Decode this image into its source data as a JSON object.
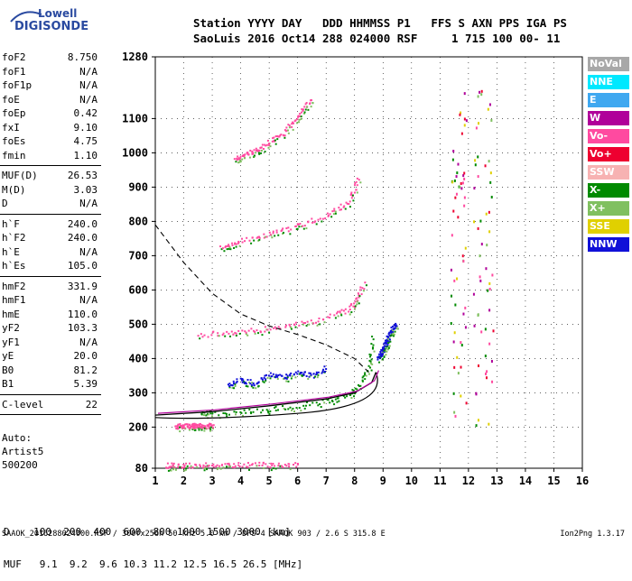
{
  "logo": {
    "line1": "Lowell",
    "line2": "DIGISONDE"
  },
  "header": {
    "line1": "Station YYYY DAY   DDD HHMMSS P1   FFS S AXN PPS IGA PS",
    "line2": "SaoLuis 2016 Oct14 288 024000 RSF     1 715 100 00- 11"
  },
  "parameters": [
    {
      "name": "foF2",
      "value": "8.750"
    },
    {
      "name": "foF1",
      "value": "N/A"
    },
    {
      "name": "foF1p",
      "value": "N/A"
    },
    {
      "name": "foE",
      "value": "N/A"
    },
    {
      "name": "foEp",
      "value": "0.42"
    },
    {
      "name": "fxI",
      "value": "9.10"
    },
    {
      "name": "foEs",
      "value": "4.75"
    },
    {
      "name": "fmin",
      "value": "1.10"
    },
    {
      "sep": true
    },
    {
      "name": "MUF(D)",
      "value": "26.53"
    },
    {
      "name": "M(D)",
      "value": "3.03"
    },
    {
      "name": "D",
      "value": "N/A"
    },
    {
      "sep": true
    },
    {
      "name": "h`F",
      "value": "240.0"
    },
    {
      "name": "h`F2",
      "value": "240.0"
    },
    {
      "name": "h`E",
      "value": "N/A"
    },
    {
      "name": "h`Es",
      "value": "105.0"
    },
    {
      "sep": true
    },
    {
      "name": "hmF2",
      "value": "331.9"
    },
    {
      "name": "hmF1",
      "value": "N/A"
    },
    {
      "name": "hmE",
      "value": "110.0"
    },
    {
      "name": "yF2",
      "value": "103.3"
    },
    {
      "name": "yF1",
      "value": "N/A"
    },
    {
      "name": "yE",
      "value": "20.0"
    },
    {
      "name": "B0",
      "value": "81.2"
    },
    {
      "name": "B1",
      "value": "5.39"
    },
    {
      "sep": true
    },
    {
      "name": "C-level",
      "value": "22"
    },
    {
      "sep": true
    }
  ],
  "extra": {
    "line1": "Auto:",
    "line2": "Artist5",
    "line3": "500200"
  },
  "legend": [
    {
      "label": "NoVal",
      "color": "#a8a8a8"
    },
    {
      "label": "NNE",
      "color": "#00e8ff"
    },
    {
      "label": "E",
      "color": "#3fa8f0"
    },
    {
      "label": "W",
      "color": "#b0009a"
    },
    {
      "label": "Vo-",
      "color": "#ff4aa0"
    },
    {
      "label": "Vo+",
      "color": "#ee0030"
    },
    {
      "label": "SSW",
      "color": "#f7b2b2"
    },
    {
      "label": "X-",
      "color": "#008a00"
    },
    {
      "label": "X+",
      "color": "#80c060"
    },
    {
      "label": "SSE",
      "color": "#e0d000"
    },
    {
      "label": "NNW",
      "color": "#1010d8"
    }
  ],
  "muf_table": {
    "d_row": "D    100  200  400  600  800 1000 1500 3000 [km]",
    "muf_row": "MUF   9.1  9.2  9.6 10.3 11.2 12.5 16.5 26.5 [MHz]"
  },
  "footer": {
    "left": "SAAOK_2016288024000.RSF / 300fx256h 50 kHz 5.0 km / DPS-4 SAAOK 903 / 2.6 S 315.8 E",
    "right": "Ion2Png 1.3.17"
  },
  "chart_data": {
    "type": "scatter",
    "x_ticks": [
      1,
      2,
      3,
      4,
      5,
      6,
      7,
      8,
      9,
      10,
      11,
      12,
      13,
      14,
      15,
      16
    ],
    "y_ticks": [
      80,
      200,
      300,
      400,
      500,
      600,
      700,
      800,
      900,
      1000,
      1100,
      1280
    ],
    "xlim": [
      1,
      16
    ],
    "ylim": [
      80,
      1280
    ],
    "grid": true,
    "traces": [
      {
        "name": "X-",
        "color": "#008a00",
        "x": [
          2.6,
          3.0,
          4.0,
          5.0,
          6.0,
          7.0,
          7.8,
          8.2,
          8.5,
          8.6
        ],
        "y": [
          240,
          242,
          247,
          255,
          265,
          278,
          298,
          330,
          380,
          460
        ]
      },
      {
        "name": "Vo-",
        "color": "#ff4aa0",
        "x": [
          1.7,
          2.2,
          2.5,
          3.0
        ],
        "y": [
          205,
          206,
          205,
          206
        ]
      },
      {
        "name": "Vo-",
        "color": "#ff4aa0",
        "x": [
          2.5,
          3.5,
          4.5,
          5.5,
          6.5,
          7.5,
          8.0,
          8.3
        ],
        "y": [
          470,
          478,
          485,
          495,
          510,
          535,
          560,
          620
        ]
      },
      {
        "name": "Vo-",
        "color": "#ff4aa0",
        "x": [
          3.3,
          4.0,
          5.0,
          6.0,
          7.0,
          7.8,
          8.1
        ],
        "y": [
          730,
          745,
          765,
          790,
          820,
          860,
          930
        ]
      },
      {
        "name": "Vo-",
        "color": "#ff4aa0",
        "x": [
          3.8,
          4.5,
          5.5,
          6.5
        ],
        "y": [
          985,
          1010,
          1060,
          1160
        ]
      },
      {
        "name": "Vo-",
        "color": "#ff4aa0",
        "x": [
          1.3,
          2.0,
          3.0,
          4.0,
          5.0,
          6.0
        ],
        "y": [
          90,
          90,
          91,
          92,
          92,
          93
        ]
      },
      {
        "name": "NNW",
        "color": "#1010d8",
        "x": [
          3.5,
          4.0,
          4.5,
          5.0,
          5.5,
          6.0,
          6.5,
          7.0
        ],
        "y": [
          320,
          340,
          330,
          355,
          345,
          365,
          350,
          375
        ]
      },
      {
        "name": "NNW",
        "color": "#1010d8",
        "x": [
          8.8,
          9.0,
          9.2,
          9.4
        ],
        "y": [
          400,
          430,
          470,
          500
        ]
      }
    ],
    "profile_curve": {
      "f": [
        1.0,
        3.0,
        5.0,
        7.0,
        8.0,
        8.6,
        8.75
      ],
      "h": [
        235,
        245,
        262,
        282,
        300,
        330,
        360
      ]
    },
    "dashed_curve": {
      "f": [
        1.0,
        2.0,
        3.0,
        4.0,
        5.0,
        6.0,
        7.0,
        8.0,
        8.5
      ],
      "h": [
        790,
        680,
        590,
        530,
        495,
        470,
        440,
        400,
        360
      ]
    }
  }
}
